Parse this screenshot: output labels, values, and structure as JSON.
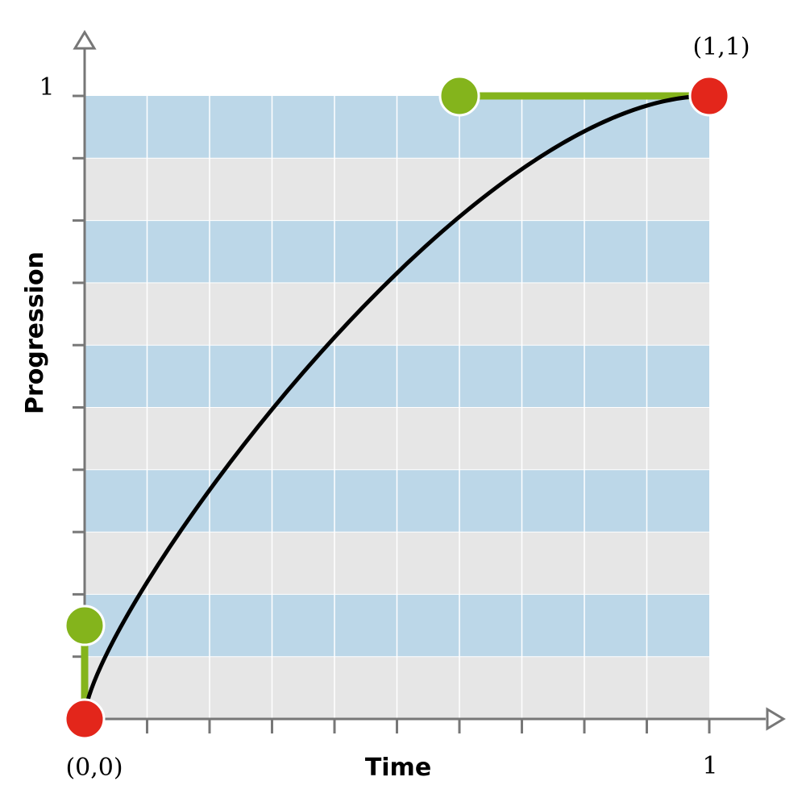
{
  "chart_data": {
    "type": "line",
    "title": "",
    "xlabel": "Time",
    "ylabel": "Progression",
    "xlim": [
      0,
      1
    ],
    "ylim": [
      0,
      1
    ],
    "x_end_label": "1",
    "y_end_label": "1",
    "origin_label": "(0,0)",
    "end_point_label": "(1,1)",
    "grid": true,
    "x_divisions": 10,
    "y_divisions": 10,
    "curve": {
      "kind": "cubic-bezier",
      "p0": [
        0,
        0
      ],
      "p1": [
        0,
        0.15
      ],
      "p2": [
        0.6,
        1
      ],
      "p3": [
        1,
        1
      ]
    },
    "control_points": [
      {
        "role": "start",
        "x": 0,
        "y": 0,
        "color": "#e3261b"
      },
      {
        "role": "handle1",
        "x": 0,
        "y": 0.15,
        "color": "#84b41c"
      },
      {
        "role": "handle2",
        "x": 0.6,
        "y": 1,
        "color": "#84b41c"
      },
      {
        "role": "end",
        "x": 1,
        "y": 1,
        "color": "#e3261b"
      }
    ],
    "colors": {
      "band_blue": "#bcd7e8",
      "band_grey": "#e6e6e6",
      "axis": "#777777",
      "curve": "#000000",
      "handle_line": "#84b41c"
    }
  }
}
